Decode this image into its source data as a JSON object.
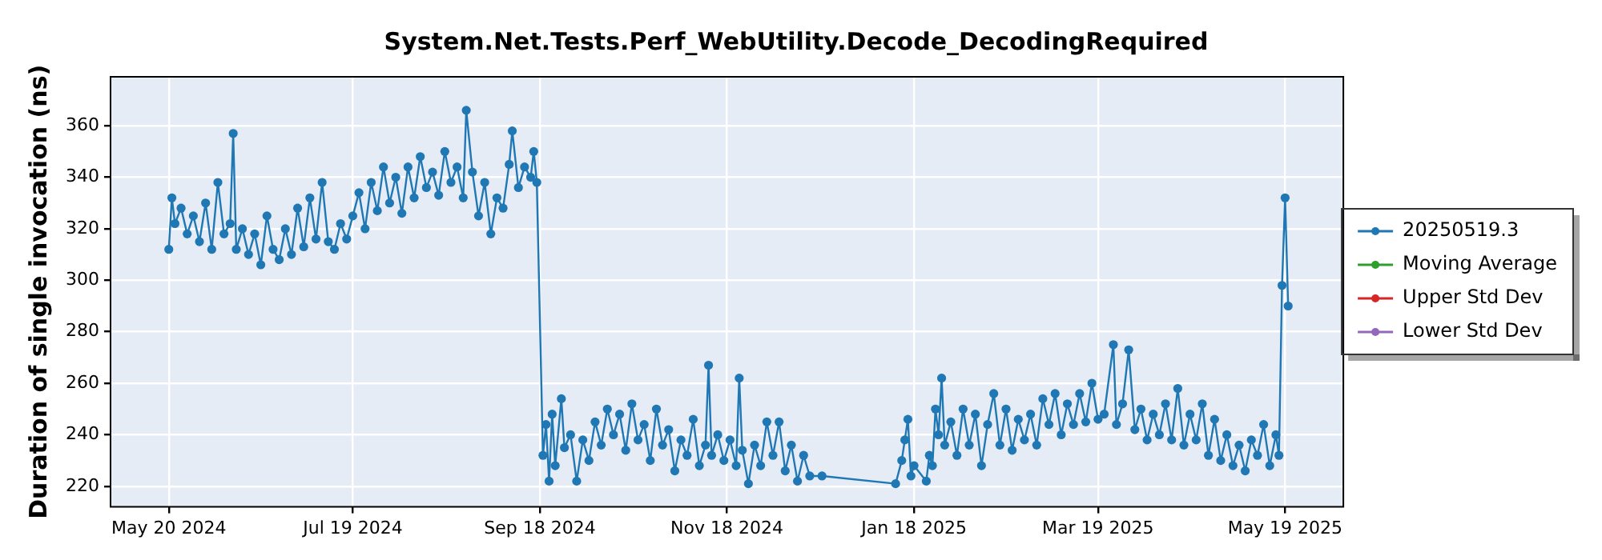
{
  "chart_data": {
    "type": "line",
    "title": "System.Net.Tests.Perf_WebUtility.Decode_DecodingRequired",
    "ylabel": "Duration of single invocation (ns)",
    "xlim": [
      "2024-05-01",
      "2025-06-07"
    ],
    "xticks": [
      {
        "value": "2024-05-20",
        "label": "May 20 2024"
      },
      {
        "value": "2024-07-19",
        "label": "Jul 19 2024"
      },
      {
        "value": "2024-09-18",
        "label": "Sep 18 2024"
      },
      {
        "value": "2024-11-18",
        "label": "Nov 18 2024"
      },
      {
        "value": "2025-01-18",
        "label": "Jan 18 2025"
      },
      {
        "value": "2025-03-19",
        "label": "Mar 19 2025"
      },
      {
        "value": "2025-05-19",
        "label": "May 19 2025"
      }
    ],
    "ylim": [
      212,
      379
    ],
    "yticks": [
      220,
      240,
      260,
      280,
      300,
      320,
      340,
      360
    ],
    "grid": true,
    "legend": "right",
    "marker": "circle",
    "line_style": "solid",
    "series": [
      {
        "name": "20250519.3",
        "color": "#1f77b4",
        "x": [
          "2024-05-20",
          "2024-05-21",
          "2024-05-22",
          "2024-05-24",
          "2024-05-26",
          "2024-05-28",
          "2024-05-30",
          "2024-06-01",
          "2024-06-03",
          "2024-06-05",
          "2024-06-07",
          "2024-06-09",
          "2024-06-10",
          "2024-06-11",
          "2024-06-13",
          "2024-06-15",
          "2024-06-17",
          "2024-06-19",
          "2024-06-21",
          "2024-06-23",
          "2024-06-25",
          "2024-06-27",
          "2024-06-29",
          "2024-07-01",
          "2024-07-03",
          "2024-07-05",
          "2024-07-07",
          "2024-07-09",
          "2024-07-11",
          "2024-07-13",
          "2024-07-15",
          "2024-07-17",
          "2024-07-19",
          "2024-07-21",
          "2024-07-23",
          "2024-07-25",
          "2024-07-27",
          "2024-07-29",
          "2024-07-31",
          "2024-08-02",
          "2024-08-04",
          "2024-08-06",
          "2024-08-08",
          "2024-08-10",
          "2024-08-12",
          "2024-08-14",
          "2024-08-16",
          "2024-08-18",
          "2024-08-20",
          "2024-08-22",
          "2024-08-24",
          "2024-08-25",
          "2024-08-27",
          "2024-08-29",
          "2024-08-31",
          "2024-09-02",
          "2024-09-04",
          "2024-09-06",
          "2024-09-08",
          "2024-09-09",
          "2024-09-11",
          "2024-09-13",
          "2024-09-15",
          "2024-09-16",
          "2024-09-17",
          "2024-09-19",
          "2024-09-20",
          "2024-09-21",
          "2024-09-22",
          "2024-09-23",
          "2024-09-25",
          "2024-09-26",
          "2024-09-28",
          "2024-09-30",
          "2024-10-02",
          "2024-10-04",
          "2024-10-06",
          "2024-10-08",
          "2024-10-10",
          "2024-10-12",
          "2024-10-14",
          "2024-10-16",
          "2024-10-18",
          "2024-10-20",
          "2024-10-22",
          "2024-10-24",
          "2024-10-26",
          "2024-10-28",
          "2024-10-30",
          "2024-11-01",
          "2024-11-03",
          "2024-11-05",
          "2024-11-07",
          "2024-11-09",
          "2024-11-11",
          "2024-11-12",
          "2024-11-13",
          "2024-11-15",
          "2024-11-17",
          "2024-11-19",
          "2024-11-21",
          "2024-11-22",
          "2024-11-23",
          "2024-11-25",
          "2024-11-27",
          "2024-11-29",
          "2024-12-01",
          "2024-12-03",
          "2024-12-05",
          "2024-12-07",
          "2024-12-09",
          "2024-12-11",
          "2024-12-13",
          "2024-12-15",
          "2024-12-19",
          "2025-01-12",
          "2025-01-14",
          "2025-01-15",
          "2025-01-16",
          "2025-01-17",
          "2025-01-18",
          "2025-01-22",
          "2025-01-23",
          "2025-01-24",
          "2025-01-25",
          "2025-01-26",
          "2025-01-27",
          "2025-01-28",
          "2025-01-30",
          "2025-02-01",
          "2025-02-03",
          "2025-02-05",
          "2025-02-07",
          "2025-02-09",
          "2025-02-11",
          "2025-02-13",
          "2025-02-15",
          "2025-02-17",
          "2025-02-19",
          "2025-02-21",
          "2025-02-23",
          "2025-02-25",
          "2025-02-27",
          "2025-03-01",
          "2025-03-03",
          "2025-03-05",
          "2025-03-07",
          "2025-03-09",
          "2025-03-11",
          "2025-03-13",
          "2025-03-15",
          "2025-03-17",
          "2025-03-19",
          "2025-03-21",
          "2025-03-24",
          "2025-03-25",
          "2025-03-27",
          "2025-03-29",
          "2025-03-31",
          "2025-04-02",
          "2025-04-04",
          "2025-04-06",
          "2025-04-08",
          "2025-04-10",
          "2025-04-12",
          "2025-04-14",
          "2025-04-16",
          "2025-04-18",
          "2025-04-20",
          "2025-04-22",
          "2025-04-24",
          "2025-04-26",
          "2025-04-28",
          "2025-04-30",
          "2025-05-02",
          "2025-05-04",
          "2025-05-06",
          "2025-05-08",
          "2025-05-10",
          "2025-05-12",
          "2025-05-14",
          "2025-05-16",
          "2025-05-17",
          "2025-05-18",
          "2025-05-19",
          "2025-05-20"
        ],
        "values": [
          312,
          332,
          322,
          328,
          318,
          325,
          315,
          330,
          312,
          338,
          318,
          322,
          357,
          312,
          320,
          310,
          318,
          306,
          325,
          312,
          308,
          320,
          310,
          328,
          313,
          332,
          316,
          338,
          315,
          312,
          322,
          316,
          325,
          334,
          320,
          338,
          327,
          344,
          330,
          340,
          326,
          344,
          332,
          348,
          336,
          342,
          333,
          350,
          338,
          344,
          332,
          366,
          342,
          325,
          338,
          318,
          332,
          328,
          345,
          358,
          336,
          344,
          340,
          350,
          338,
          232,
          244,
          222,
          248,
          228,
          254,
          235,
          240,
          222,
          238,
          230,
          245,
          236,
          250,
          240,
          248,
          234,
          252,
          238,
          244,
          230,
          250,
          236,
          242,
          226,
          238,
          232,
          246,
          228,
          236,
          267,
          232,
          240,
          230,
          238,
          228,
          262,
          234,
          221,
          236,
          228,
          245,
          232,
          245,
          226,
          236,
          222,
          232,
          224,
          224,
          221,
          230,
          238,
          246,
          224,
          228,
          222,
          232,
          228,
          250,
          240,
          262,
          236,
          245,
          232,
          250,
          236,
          248,
          228,
          244,
          256,
          236,
          250,
          234,
          246,
          238,
          248,
          236,
          254,
          244,
          256,
          240,
          252,
          244,
          256,
          245,
          260,
          246,
          248,
          275,
          244,
          252,
          273,
          242,
          250,
          238,
          248,
          240,
          252,
          238,
          258,
          236,
          248,
          238,
          252,
          232,
          246,
          230,
          240,
          228,
          236,
          226,
          238,
          232,
          244,
          228,
          240,
          232,
          298,
          332,
          290
        ]
      },
      {
        "name": "Moving Average",
        "color": "#2ca02c"
      },
      {
        "name": "Upper Std Dev",
        "color": "#d62728"
      },
      {
        "name": "Lower Std Dev",
        "color": "#9467bd"
      }
    ]
  }
}
